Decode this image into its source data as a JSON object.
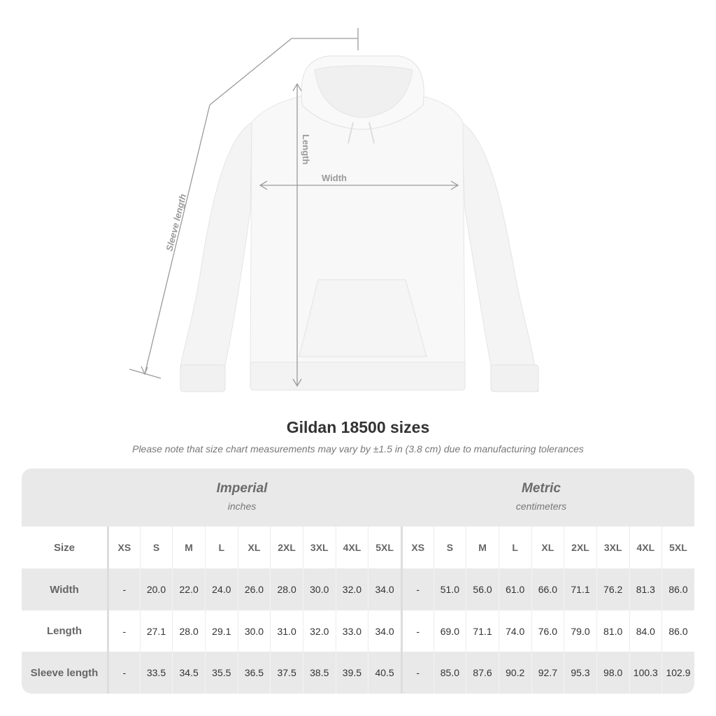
{
  "illustration": {
    "labels": {
      "sleeve": "Sleeve length",
      "length": "Length",
      "width": "Width"
    },
    "garment_color": "#f7f7f7",
    "line_color": "#9a9a9a"
  },
  "title": "Gildan 18500 sizes",
  "note": "Please note that size chart measurements may vary by ±1.5 in (3.8 cm) due to manufacturing tolerances",
  "table": {
    "groups": [
      {
        "name": "Imperial",
        "unit": "inches"
      },
      {
        "name": "Metric",
        "unit": "centimeters"
      }
    ],
    "size_label": "Size",
    "sizes": [
      "XS",
      "S",
      "M",
      "L",
      "XL",
      "2XL",
      "3XL",
      "4XL",
      "5XL"
    ],
    "rows": [
      {
        "label": "Width",
        "imperial": [
          "-",
          "20.0",
          "22.0",
          "24.0",
          "26.0",
          "28.0",
          "30.0",
          "32.0",
          "34.0"
        ],
        "metric": [
          "-",
          "51.0",
          "56.0",
          "61.0",
          "66.0",
          "71.1",
          "76.2",
          "81.3",
          "86.0"
        ]
      },
      {
        "label": "Length",
        "imperial": [
          "-",
          "27.1",
          "28.0",
          "29.1",
          "30.0",
          "31.0",
          "32.0",
          "33.0",
          "34.0"
        ],
        "metric": [
          "-",
          "69.0",
          "71.1",
          "74.0",
          "76.0",
          "79.0",
          "81.0",
          "84.0",
          "86.0"
        ]
      },
      {
        "label": "Sleeve length",
        "imperial": [
          "-",
          "33.5",
          "34.5",
          "35.5",
          "36.5",
          "37.5",
          "38.5",
          "39.5",
          "40.5"
        ],
        "metric": [
          "-",
          "85.0",
          "87.6",
          "90.2",
          "92.7",
          "95.3",
          "98.0",
          "100.3",
          "102.9"
        ]
      }
    ]
  }
}
